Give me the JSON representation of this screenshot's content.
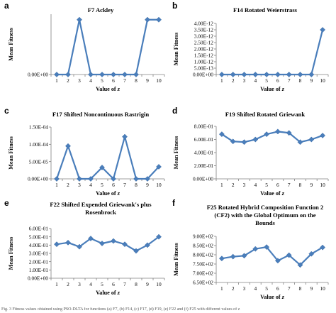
{
  "caption": "Fig. 3 Fitness values obtained using PSO-DLTA for functions (a) F7, (b) F14, (c) F17, (d) F19, (e) F22 and (f) F25 with different values of z",
  "chart_data": [
    {
      "type": "line",
      "letter": "a",
      "title": [
        "F7 Ackley"
      ],
      "xlabel": "Value of z",
      "ylabel": "Mean Fitness",
      "x": [
        1,
        2,
        3,
        4,
        5,
        6,
        7,
        8,
        9,
        10
      ],
      "values": [
        0,
        0,
        1,
        0,
        0,
        0,
        0,
        0,
        1,
        1
      ],
      "ylim": [
        0,
        1.1
      ],
      "yticks": [
        {
          "value": 0,
          "label": "0.00E+00"
        }
      ],
      "color": "#4a7ebb"
    },
    {
      "type": "line",
      "letter": "b",
      "title": [
        "F14 Rotated Weierstrass"
      ],
      "xlabel": "Value of z",
      "ylabel": "Mean Fitness",
      "x": [
        1,
        2,
        3,
        4,
        5,
        6,
        7,
        8,
        9,
        10
      ],
      "values": [
        0,
        0,
        0,
        0,
        0,
        0,
        0,
        0,
        0,
        3.5e-12
      ],
      "ylim": [
        0,
        4e-12
      ],
      "yticks": [
        {
          "value": 0,
          "label": "0.00E+00"
        },
        {
          "value": 5e-13,
          "label": "5.00E-13"
        },
        {
          "value": 1e-12,
          "label": "1.00E-12"
        },
        {
          "value": 1.5e-12,
          "label": "1.50E-12"
        },
        {
          "value": 2e-12,
          "label": "2.00E-12"
        },
        {
          "value": 2.5e-12,
          "label": "2.50E-12"
        },
        {
          "value": 3e-12,
          "label": "3.00E-12"
        },
        {
          "value": 3.5e-12,
          "label": "3.50E-12"
        },
        {
          "value": 4e-12,
          "label": "4.00E-12"
        }
      ],
      "color": "#4a7ebb"
    },
    {
      "type": "line",
      "letter": "c",
      "title": [
        "F17 Shifted Noncontinuous Rastrigin"
      ],
      "xlabel": "Value of z",
      "ylabel": "Mean Fitness",
      "x": [
        1,
        2,
        3,
        4,
        5,
        6,
        7,
        8,
        9,
        10
      ],
      "values": [
        0,
        9.5e-05,
        0,
        0,
        3.3e-05,
        0,
        0.000122,
        0,
        0,
        3.5e-05
      ],
      "ylim": [
        0,
        0.00015
      ],
      "yticks": [
        {
          "value": 0,
          "label": "0.00E+00"
        },
        {
          "value": 5e-05,
          "label": "5.00E-05"
        },
        {
          "value": 0.0001,
          "label": "1.00E-04"
        },
        {
          "value": 0.00015,
          "label": "1.50E-04"
        }
      ],
      "color": "#4a7ebb"
    },
    {
      "type": "line",
      "letter": "d",
      "title": [
        "F19 Shifted Rotated Griewank"
      ],
      "xlabel": "Value of z",
      "ylabel": "Mean Fitness",
      "x": [
        1,
        2,
        3,
        4,
        5,
        6,
        7,
        8,
        9,
        10
      ],
      "values": [
        0.68,
        0.57,
        0.56,
        0.6,
        0.68,
        0.72,
        0.7,
        0.56,
        0.6,
        0.66
      ],
      "ylim": [
        0,
        0.8
      ],
      "yticks": [
        {
          "value": 0,
          "label": "0.00E+00"
        },
        {
          "value": 0.2,
          "label": "2.00E-01"
        },
        {
          "value": 0.4,
          "label": "4.00E-01"
        },
        {
          "value": 0.6,
          "label": "6.00E-01"
        },
        {
          "value": 0.8,
          "label": "8.00E-01"
        }
      ],
      "color": "#4a7ebb"
    },
    {
      "type": "line",
      "letter": "e",
      "title": [
        "F22 Shifted Expended Griewank's plus",
        "Rosenbrock"
      ],
      "xlabel": "Value of z",
      "ylabel": "Mean Fitness",
      "x": [
        1,
        2,
        3,
        4,
        5,
        6,
        7,
        8,
        9,
        10
      ],
      "values": [
        0.41,
        0.43,
        0.38,
        0.48,
        0.42,
        0.45,
        0.41,
        0.33,
        0.4,
        0.5
      ],
      "ylim": [
        0,
        0.6
      ],
      "yticks": [
        {
          "value": 0,
          "label": "0.00E+00"
        },
        {
          "value": 0.1,
          "label": "1.00E-01"
        },
        {
          "value": 0.2,
          "label": "2.00E-01"
        },
        {
          "value": 0.3,
          "label": "3.00E-01"
        },
        {
          "value": 0.4,
          "label": "4.00E-01"
        },
        {
          "value": 0.5,
          "label": "5.00E-01"
        },
        {
          "value": 0.6,
          "label": "6.00E-01"
        }
      ],
      "color": "#4a7ebb"
    },
    {
      "type": "line",
      "letter": "f",
      "title": [
        "F25 Rotated Hybrid Composition Function 2",
        "(CF2) with the Global Optimum on the",
        "Bounds"
      ],
      "xlabel": "Value of z",
      "ylabel": "Mean Fitness",
      "x": [
        1,
        2,
        3,
        4,
        5,
        6,
        7,
        8,
        9,
        10
      ],
      "values": [
        780,
        790,
        795,
        832,
        842,
        768,
        798,
        745,
        805,
        840
      ],
      "ylim": [
        650,
        900
      ],
      "yticks": [
        {
          "value": 650,
          "label": "6.50E+02"
        },
        {
          "value": 700,
          "label": "7.00E+02"
        },
        {
          "value": 750,
          "label": "7.50E+02"
        },
        {
          "value": 800,
          "label": "8.00E+02"
        },
        {
          "value": 850,
          "label": "8.50E+02"
        },
        {
          "value": 900,
          "label": "9.00E+02"
        }
      ],
      "color": "#4a7ebb"
    }
  ]
}
